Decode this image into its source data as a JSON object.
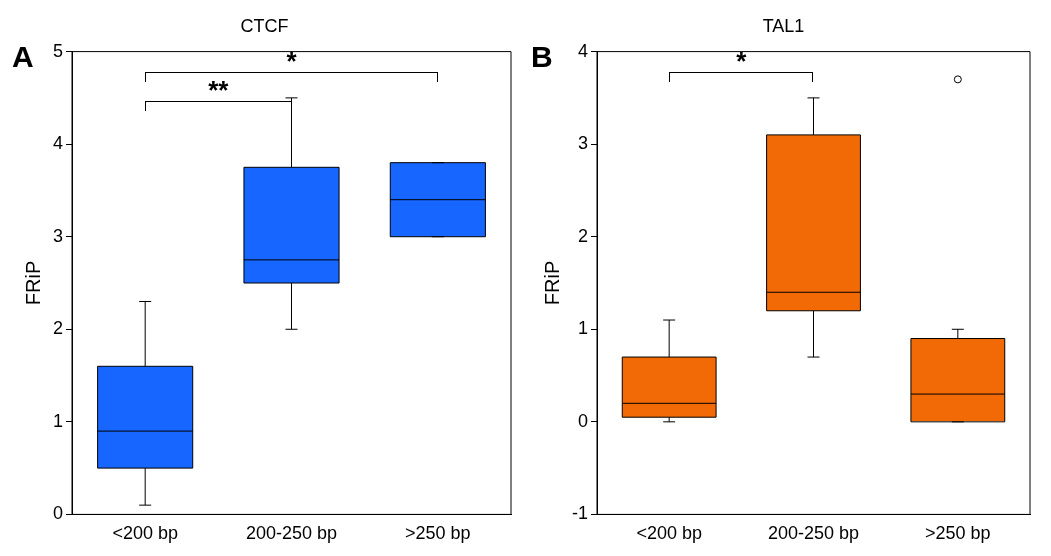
{
  "chart_data": [
    {
      "type": "box",
      "title": "CTCF",
      "ylabel": "FRiP",
      "categories": [
        "<200 bp",
        "200-250 bp",
        ">250 bp"
      ],
      "color": "#1766ff",
      "ylim": [
        0,
        5
      ],
      "yticks": [
        0,
        1,
        2,
        3,
        4,
        5
      ],
      "grid": false,
      "boxes": [
        {
          "low": 0.1,
          "q1": 0.5,
          "median": 0.9,
          "q3": 1.6,
          "high": 2.3
        },
        {
          "low": 2.0,
          "q1": 2.5,
          "median": 2.75,
          "q3": 3.75,
          "high": 4.5
        },
        {
          "low": 3.0,
          "q1": 3.0,
          "median": 3.4,
          "q3": 3.8,
          "high": 3.8
        }
      ],
      "annotations": [
        "A",
        "**",
        "*"
      ]
    },
    {
      "type": "box",
      "title": "TAL1",
      "ylabel": "FRiP",
      "categories": [
        "<200 bp",
        "200-250 bp",
        ">250 bp"
      ],
      "color": "#f26a05",
      "ylim": [
        -1,
        4
      ],
      "yticks": [
        -1,
        0,
        1,
        2,
        3,
        4
      ],
      "grid": false,
      "boxes": [
        {
          "low": 0,
          "q1": 0.05,
          "median": 0.2,
          "q3": 0.7,
          "high": 1.1
        },
        {
          "low": 0.7,
          "q1": 1.2,
          "median": 1.4,
          "q3": 3.1,
          "high": 3.5
        },
        {
          "low": 0,
          "q1": 0,
          "median": 0.3,
          "q3": 0.9,
          "high": 1.0,
          "outliers": [
            3.7
          ]
        }
      ],
      "annotations": [
        "B",
        "*"
      ]
    }
  ]
}
